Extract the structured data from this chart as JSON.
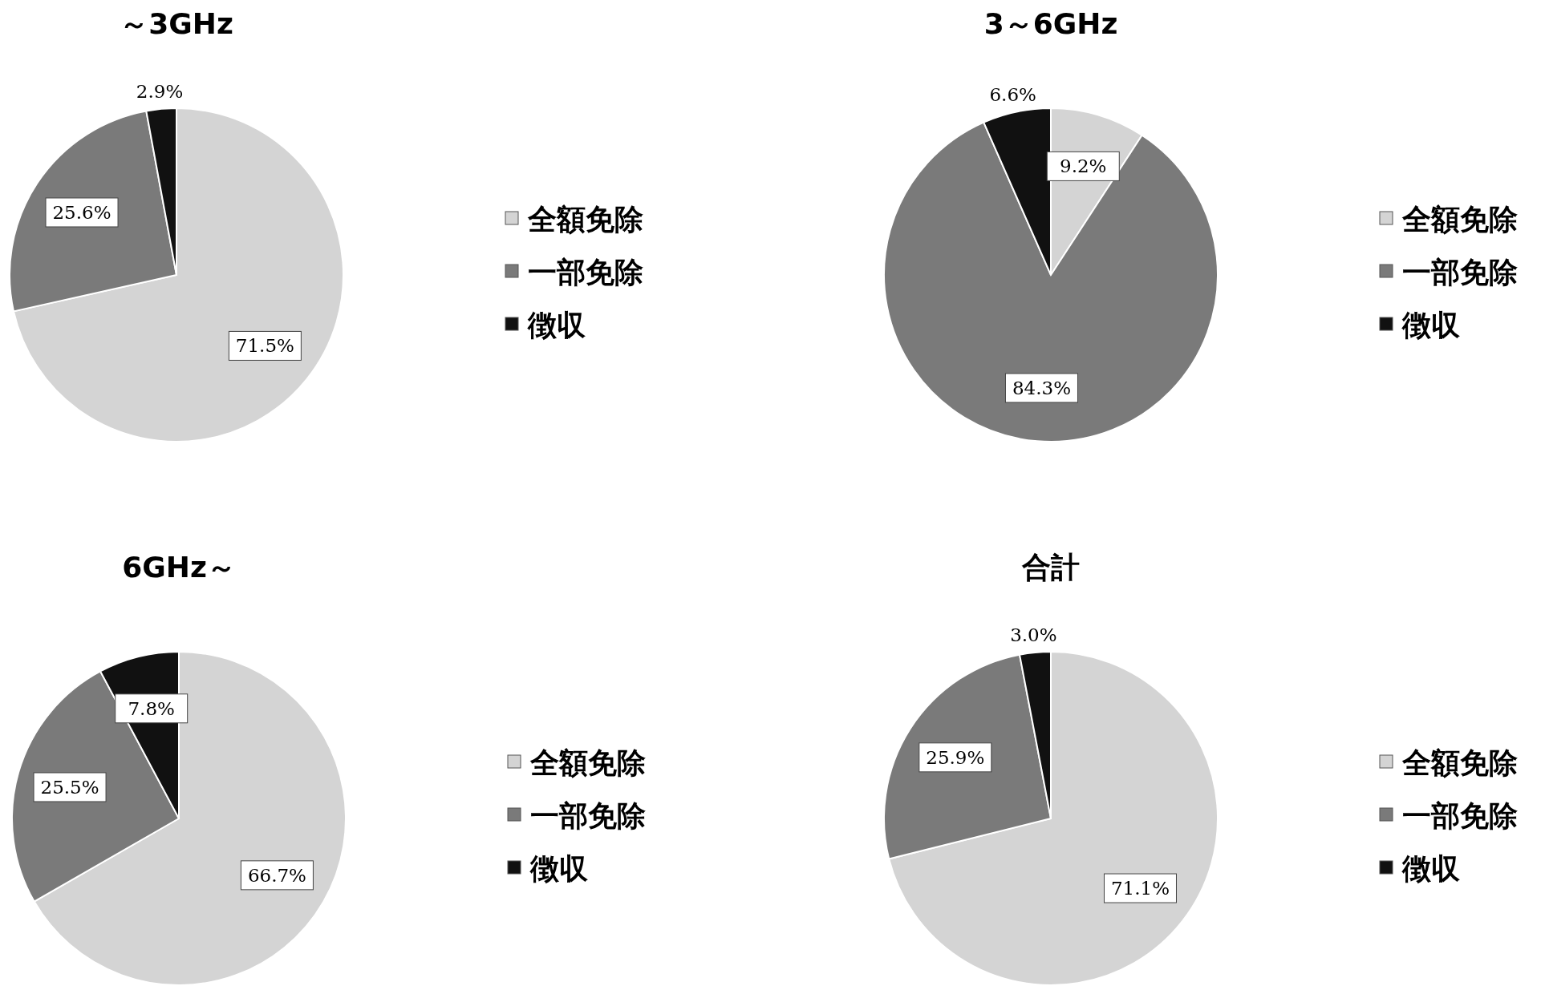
{
  "chart_data": [
    {
      "type": "pie",
      "title": "～3GHz",
      "categories": [
        "全額免除",
        "一部免除",
        "徴収"
      ],
      "values": [
        71.5,
        25.6,
        2.9
      ],
      "value_labels": [
        "71.5%",
        "25.6%",
        "2.9%"
      ],
      "colors": [
        "#d4d4d4",
        "#7a7a7a",
        "#111111"
      ],
      "legend": "right"
    },
    {
      "type": "pie",
      "title": "3～6GHz",
      "categories": [
        "全額免除",
        "一部免除",
        "徴収"
      ],
      "values": [
        9.2,
        84.3,
        6.6
      ],
      "value_labels": [
        "9.2%",
        "84.3%",
        "6.6%"
      ],
      "colors": [
        "#d4d4d4",
        "#7a7a7a",
        "#111111"
      ],
      "legend": "right"
    },
    {
      "type": "pie",
      "title": "6GHz～",
      "categories": [
        "全額免除",
        "一部免除",
        "徴収"
      ],
      "values": [
        66.7,
        25.5,
        7.8
      ],
      "value_labels": [
        "66.7%",
        "25.5%",
        "7.8%"
      ],
      "colors": [
        "#d4d4d4",
        "#7a7a7a",
        "#111111"
      ],
      "legend": "right"
    },
    {
      "type": "pie",
      "title": "合計",
      "categories": [
        "全額免除",
        "一部免除",
        "徴収"
      ],
      "values": [
        71.1,
        25.9,
        3.0
      ],
      "value_labels": [
        "71.1%",
        "25.9%",
        "3.0%"
      ],
      "colors": [
        "#d4d4d4",
        "#7a7a7a",
        "#111111"
      ],
      "legend": "right"
    }
  ]
}
